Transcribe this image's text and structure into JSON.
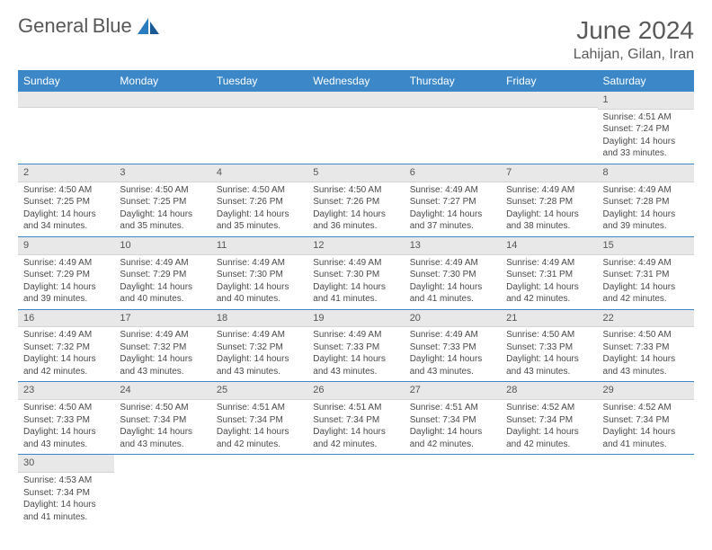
{
  "brand": {
    "part1": "General",
    "part2": "Blue"
  },
  "title": "June 2024",
  "location": "Lahijan, Gilan, Iran",
  "colors": {
    "header_bg": "#3b87c8",
    "header_text": "#ffffff",
    "daynum_bg": "#e8e8e8",
    "row_border": "#3b87c8",
    "body_text": "#4a4a4a",
    "title_text": "#5a5a5a",
    "brand_gray": "#585858",
    "brand_blue": "#2b7bbf"
  },
  "day_headers": [
    "Sunday",
    "Monday",
    "Tuesday",
    "Wednesday",
    "Thursday",
    "Friday",
    "Saturday"
  ],
  "weeks": [
    [
      null,
      null,
      null,
      null,
      null,
      null,
      {
        "n": "1",
        "sunrise": "Sunrise: 4:51 AM",
        "sunset": "Sunset: 7:24 PM",
        "day1": "Daylight: 14 hours",
        "day2": "and 33 minutes."
      }
    ],
    [
      {
        "n": "2",
        "sunrise": "Sunrise: 4:50 AM",
        "sunset": "Sunset: 7:25 PM",
        "day1": "Daylight: 14 hours",
        "day2": "and 34 minutes."
      },
      {
        "n": "3",
        "sunrise": "Sunrise: 4:50 AM",
        "sunset": "Sunset: 7:25 PM",
        "day1": "Daylight: 14 hours",
        "day2": "and 35 minutes."
      },
      {
        "n": "4",
        "sunrise": "Sunrise: 4:50 AM",
        "sunset": "Sunset: 7:26 PM",
        "day1": "Daylight: 14 hours",
        "day2": "and 35 minutes."
      },
      {
        "n": "5",
        "sunrise": "Sunrise: 4:50 AM",
        "sunset": "Sunset: 7:26 PM",
        "day1": "Daylight: 14 hours",
        "day2": "and 36 minutes."
      },
      {
        "n": "6",
        "sunrise": "Sunrise: 4:49 AM",
        "sunset": "Sunset: 7:27 PM",
        "day1": "Daylight: 14 hours",
        "day2": "and 37 minutes."
      },
      {
        "n": "7",
        "sunrise": "Sunrise: 4:49 AM",
        "sunset": "Sunset: 7:28 PM",
        "day1": "Daylight: 14 hours",
        "day2": "and 38 minutes."
      },
      {
        "n": "8",
        "sunrise": "Sunrise: 4:49 AM",
        "sunset": "Sunset: 7:28 PM",
        "day1": "Daylight: 14 hours",
        "day2": "and 39 minutes."
      }
    ],
    [
      {
        "n": "9",
        "sunrise": "Sunrise: 4:49 AM",
        "sunset": "Sunset: 7:29 PM",
        "day1": "Daylight: 14 hours",
        "day2": "and 39 minutes."
      },
      {
        "n": "10",
        "sunrise": "Sunrise: 4:49 AM",
        "sunset": "Sunset: 7:29 PM",
        "day1": "Daylight: 14 hours",
        "day2": "and 40 minutes."
      },
      {
        "n": "11",
        "sunrise": "Sunrise: 4:49 AM",
        "sunset": "Sunset: 7:30 PM",
        "day1": "Daylight: 14 hours",
        "day2": "and 40 minutes."
      },
      {
        "n": "12",
        "sunrise": "Sunrise: 4:49 AM",
        "sunset": "Sunset: 7:30 PM",
        "day1": "Daylight: 14 hours",
        "day2": "and 41 minutes."
      },
      {
        "n": "13",
        "sunrise": "Sunrise: 4:49 AM",
        "sunset": "Sunset: 7:30 PM",
        "day1": "Daylight: 14 hours",
        "day2": "and 41 minutes."
      },
      {
        "n": "14",
        "sunrise": "Sunrise: 4:49 AM",
        "sunset": "Sunset: 7:31 PM",
        "day1": "Daylight: 14 hours",
        "day2": "and 42 minutes."
      },
      {
        "n": "15",
        "sunrise": "Sunrise: 4:49 AM",
        "sunset": "Sunset: 7:31 PM",
        "day1": "Daylight: 14 hours",
        "day2": "and 42 minutes."
      }
    ],
    [
      {
        "n": "16",
        "sunrise": "Sunrise: 4:49 AM",
        "sunset": "Sunset: 7:32 PM",
        "day1": "Daylight: 14 hours",
        "day2": "and 42 minutes."
      },
      {
        "n": "17",
        "sunrise": "Sunrise: 4:49 AM",
        "sunset": "Sunset: 7:32 PM",
        "day1": "Daylight: 14 hours",
        "day2": "and 43 minutes."
      },
      {
        "n": "18",
        "sunrise": "Sunrise: 4:49 AM",
        "sunset": "Sunset: 7:32 PM",
        "day1": "Daylight: 14 hours",
        "day2": "and 43 minutes."
      },
      {
        "n": "19",
        "sunrise": "Sunrise: 4:49 AM",
        "sunset": "Sunset: 7:33 PM",
        "day1": "Daylight: 14 hours",
        "day2": "and 43 minutes."
      },
      {
        "n": "20",
        "sunrise": "Sunrise: 4:49 AM",
        "sunset": "Sunset: 7:33 PM",
        "day1": "Daylight: 14 hours",
        "day2": "and 43 minutes."
      },
      {
        "n": "21",
        "sunrise": "Sunrise: 4:50 AM",
        "sunset": "Sunset: 7:33 PM",
        "day1": "Daylight: 14 hours",
        "day2": "and 43 minutes."
      },
      {
        "n": "22",
        "sunrise": "Sunrise: 4:50 AM",
        "sunset": "Sunset: 7:33 PM",
        "day1": "Daylight: 14 hours",
        "day2": "and 43 minutes."
      }
    ],
    [
      {
        "n": "23",
        "sunrise": "Sunrise: 4:50 AM",
        "sunset": "Sunset: 7:33 PM",
        "day1": "Daylight: 14 hours",
        "day2": "and 43 minutes."
      },
      {
        "n": "24",
        "sunrise": "Sunrise: 4:50 AM",
        "sunset": "Sunset: 7:34 PM",
        "day1": "Daylight: 14 hours",
        "day2": "and 43 minutes."
      },
      {
        "n": "25",
        "sunrise": "Sunrise: 4:51 AM",
        "sunset": "Sunset: 7:34 PM",
        "day1": "Daylight: 14 hours",
        "day2": "and 42 minutes."
      },
      {
        "n": "26",
        "sunrise": "Sunrise: 4:51 AM",
        "sunset": "Sunset: 7:34 PM",
        "day1": "Daylight: 14 hours",
        "day2": "and 42 minutes."
      },
      {
        "n": "27",
        "sunrise": "Sunrise: 4:51 AM",
        "sunset": "Sunset: 7:34 PM",
        "day1": "Daylight: 14 hours",
        "day2": "and 42 minutes."
      },
      {
        "n": "28",
        "sunrise": "Sunrise: 4:52 AM",
        "sunset": "Sunset: 7:34 PM",
        "day1": "Daylight: 14 hours",
        "day2": "and 42 minutes."
      },
      {
        "n": "29",
        "sunrise": "Sunrise: 4:52 AM",
        "sunset": "Sunset: 7:34 PM",
        "day1": "Daylight: 14 hours",
        "day2": "and 41 minutes."
      }
    ],
    [
      {
        "n": "30",
        "sunrise": "Sunrise: 4:53 AM",
        "sunset": "Sunset: 7:34 PM",
        "day1": "Daylight: 14 hours",
        "day2": "and 41 minutes."
      },
      null,
      null,
      null,
      null,
      null,
      null
    ]
  ]
}
